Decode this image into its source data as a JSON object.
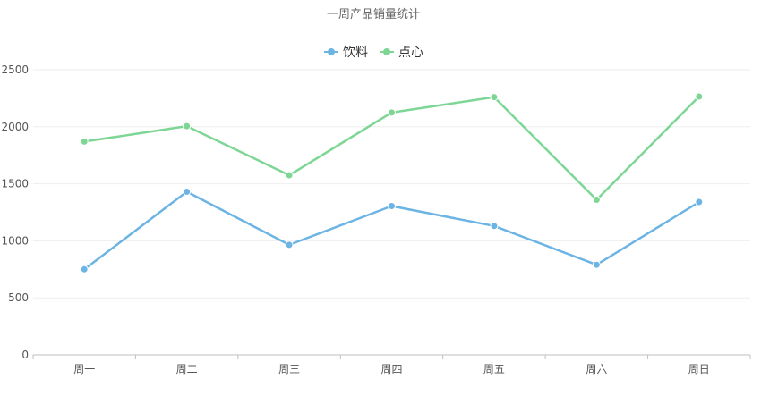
{
  "colors": {
    "background": "#ffffff",
    "grid": "#eeeeee",
    "axis": "#bfbfbf",
    "tick_label": "#555555",
    "title": "#666666",
    "legend_text": "#333333"
  },
  "chart_data": {
    "type": "line",
    "title": "一周产品销量统计",
    "xlabel": "",
    "ylabel": "",
    "categories": [
      "周一",
      "周二",
      "周三",
      "周四",
      "周五",
      "周六",
      "周日"
    ],
    "ylim": [
      0,
      2500
    ],
    "yticks": [
      0,
      500,
      1000,
      1500,
      2000,
      2500
    ],
    "grid": true,
    "legend_position": "top-center",
    "series": [
      {
        "name": "饮料",
        "color": "#6cb4e4",
        "values": [
          750,
          1430,
          965,
          1305,
          1130,
          790,
          1340
        ]
      },
      {
        "name": "点心",
        "color": "#7ed695",
        "values": [
          1870,
          2005,
          1575,
          2125,
          2260,
          1360,
          2265
        ]
      }
    ]
  }
}
